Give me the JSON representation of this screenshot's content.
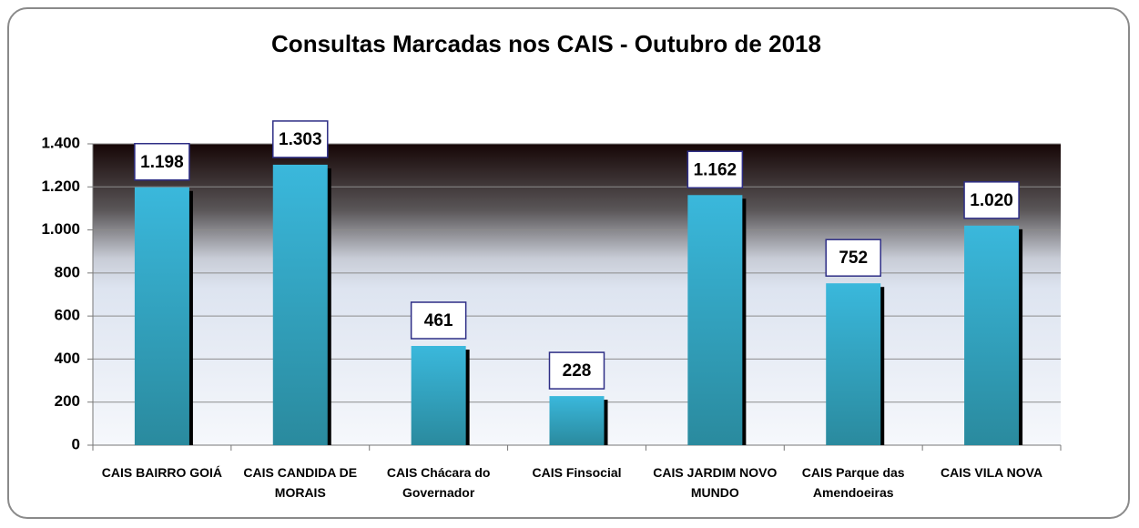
{
  "chart_data": {
    "type": "bar",
    "title": "Consultas Marcadas nos CAIS - Outubro de 2018",
    "categories": [
      "CAIS BAIRRO GOIÁ",
      "CAIS CANDIDA DE MORAIS",
      "CAIS Chácara do Governador",
      "CAIS Finsocial",
      "CAIS JARDIM NOVO MUNDO",
      "CAIS Parque das Amendoeiras",
      "CAIS VILA NOVA"
    ],
    "values": [
      1198,
      1303,
      461,
      228,
      1162,
      752,
      1020
    ],
    "value_labels": [
      "1.198",
      "1.303",
      "461",
      "228",
      "1.162",
      "752",
      "1.020"
    ],
    "color": "#35aed0",
    "ylim": [
      0,
      1400
    ],
    "yticks": [
      0,
      200,
      400,
      600,
      800,
      {
        "value": 1000,
        "label": "1.000"
      },
      {
        "value": 1200,
        "label": "1.200"
      },
      {
        "value": 1400,
        "label": "1.400"
      }
    ],
    "grid": true
  }
}
